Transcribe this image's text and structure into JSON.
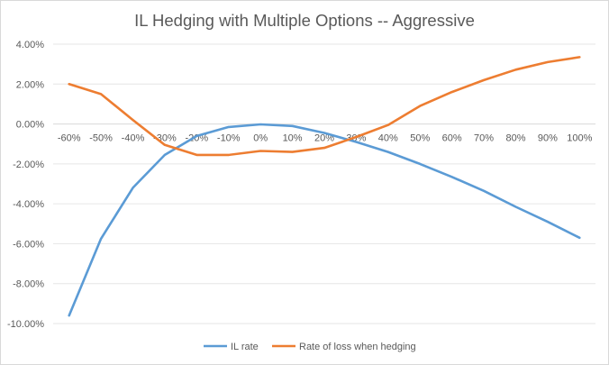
{
  "chart_data": {
    "type": "line",
    "title": "IL Hedging with Multiple Options -- Aggressive",
    "xlabel": "",
    "ylabel": "",
    "categories": [
      "-60%",
      "-50%",
      "-40%",
      "-30%",
      "-20%",
      "-10%",
      "0%",
      "10%",
      "20%",
      "30%",
      "40%",
      "50%",
      "60%",
      "70%",
      "80%",
      "90%",
      "100%"
    ],
    "series": [
      {
        "name": "IL rate",
        "color": "#5b9bd5",
        "values": [
          -9.6,
          -5.75,
          -3.2,
          -1.55,
          -0.6,
          -0.15,
          -0.02,
          -0.1,
          -0.45,
          -0.9,
          -1.4,
          -2.0,
          -2.65,
          -3.35,
          -4.15,
          -4.9,
          -5.7
        ]
      },
      {
        "name": "Rate of loss when hedging",
        "color": "#ed7d31",
        "values": [
          2.0,
          1.5,
          0.2,
          -1.05,
          -1.55,
          -1.55,
          -1.35,
          -1.4,
          -1.2,
          -0.65,
          -0.05,
          0.9,
          1.6,
          2.2,
          2.72,
          3.1,
          3.35
        ]
      }
    ],
    "ylim": [
      -10,
      4
    ],
    "yticks": [
      "4.00%",
      "2.00%",
      "0.00%",
      "-2.00%",
      "-4.00%",
      "-6.00%",
      "-8.00%",
      "-10.00%"
    ],
    "ytick_values": [
      4,
      2,
      0,
      -2,
      -4,
      -6,
      -8,
      -10
    ],
    "grid": true,
    "legend_position": "bottom"
  }
}
